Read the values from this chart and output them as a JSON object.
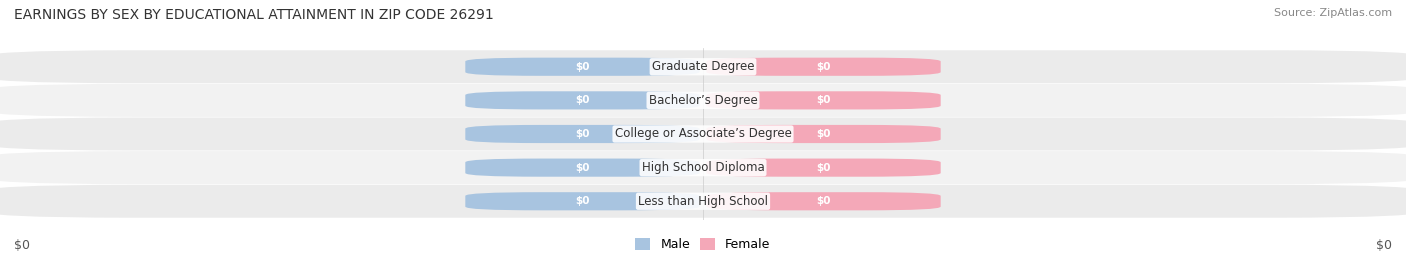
{
  "title": "EARNINGS BY SEX BY EDUCATIONAL ATTAINMENT IN ZIP CODE 26291",
  "source": "Source: ZipAtlas.com",
  "categories": [
    "Less than High School",
    "High School Diploma",
    "College or Associate’s Degree",
    "Bachelor’s Degree",
    "Graduate Degree"
  ],
  "male_values": [
    0,
    0,
    0,
    0,
    0
  ],
  "female_values": [
    0,
    0,
    0,
    0,
    0
  ],
  "male_color": "#a8c4e0",
  "female_color": "#f4a8b8",
  "male_label": "Male",
  "female_label": "Female",
  "row_bg_even": "#ebebeb",
  "row_bg_odd": "#f2f2f2",
  "title_fontsize": 10,
  "source_fontsize": 8,
  "label_fontsize": 8.5,
  "axis_label_fontsize": 9,
  "xlabel_left": "$0",
  "xlabel_right": "$0",
  "value_label": "$0",
  "background_color": "#ffffff"
}
